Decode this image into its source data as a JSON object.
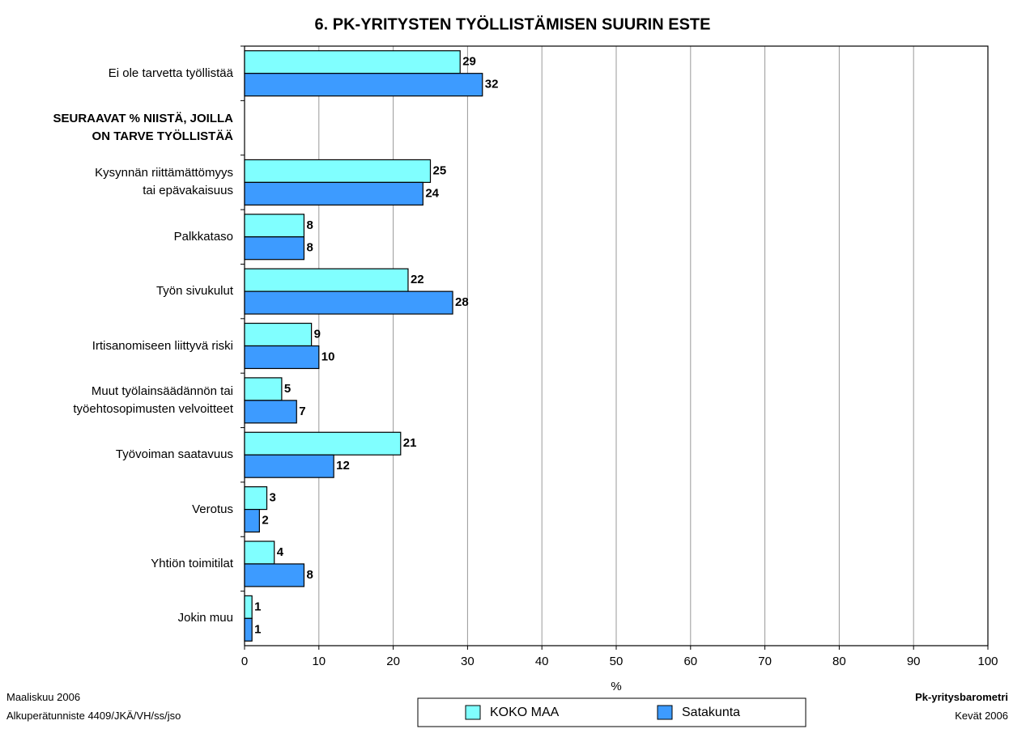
{
  "chart_data": {
    "type": "hbar",
    "title": "6. PK-YRITYSTEN TYÖLLISTÄMISEN SUURIN ESTE",
    "categories": [
      "Ei ole tarvetta työllistää",
      "SEURAAVAT % NIISTÄ, JOILLA\nON TARVE TYÖLLISTÄÄ",
      "Kysynnän riittämättömyys\ntai epävakaisuus",
      "Palkkataso",
      "Työn sivukulut",
      "Irtisanomiseen liittyvä riski",
      "Muut työlainsäädännön tai\ntyöehtosopimusten velvoitteet",
      "Työvoiman saatavuus",
      "Verotus",
      "Yhtiön toimitilat",
      "Jokin muu"
    ],
    "series": [
      {
        "name": "KOKO MAA",
        "color": "#80ffff",
        "values": [
          29,
          null,
          25,
          8,
          22,
          9,
          5,
          21,
          3,
          4,
          1
        ]
      },
      {
        "name": "Satakunta",
        "color": "#3d9bff",
        "values": [
          32,
          null,
          24,
          8,
          28,
          10,
          7,
          12,
          2,
          8,
          1
        ]
      }
    ],
    "xlabel": "%",
    "xlim": [
      0,
      100
    ],
    "xticks": [
      0,
      10,
      20,
      30,
      40,
      50,
      60,
      70,
      80,
      90,
      100
    ],
    "grid": true
  },
  "footer": {
    "left": [
      "Maaliskuu 2006",
      "Alkuperätunniste 4409/JKÄ/VH/ss/jso"
    ],
    "right": [
      "Pk-yritysbarometri",
      "Kevät 2006"
    ]
  }
}
